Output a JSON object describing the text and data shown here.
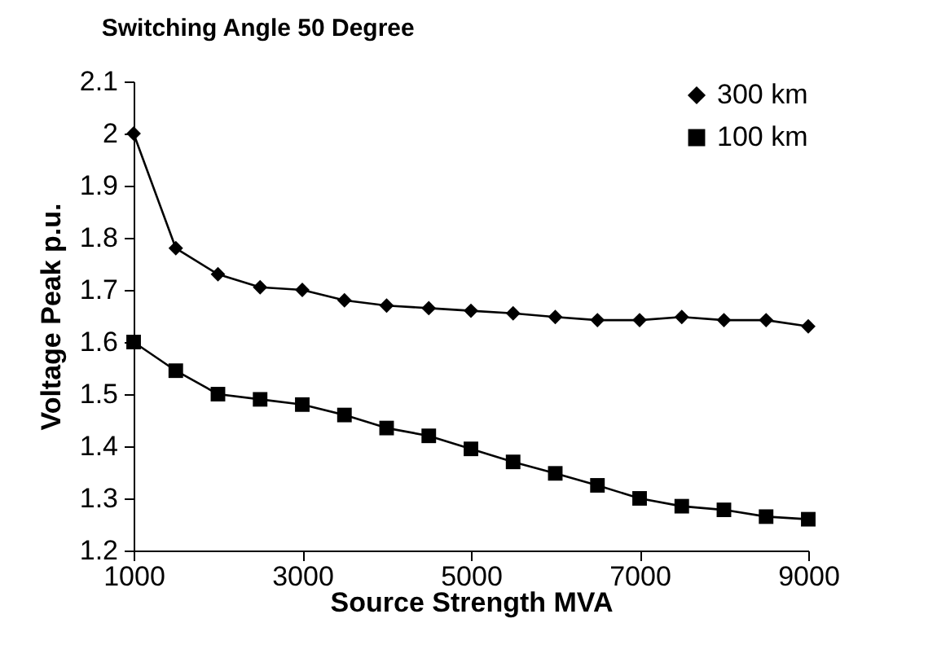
{
  "chart_data": {
    "type": "line",
    "title": "Switching Angle 50 Degree",
    "xlabel": "Source Strength MVA",
    "ylabel": "Voltage Peak p.u.",
    "x": [
      1000,
      1500,
      2000,
      2500,
      3000,
      3500,
      4000,
      4500,
      5000,
      5500,
      6000,
      6500,
      7000,
      7500,
      8000,
      8500,
      9000
    ],
    "series": [
      {
        "name": "300 km",
        "color": "#000000",
        "marker": "diamond",
        "values": [
          2.0,
          1.78,
          1.73,
          1.705,
          1.7,
          1.68,
          1.67,
          1.665,
          1.66,
          1.655,
          1.648,
          1.642,
          1.642,
          1.648,
          1.642,
          1.642,
          1.63
        ]
      },
      {
        "name": "100 km",
        "color": "#000000",
        "marker": "square",
        "values": [
          1.6,
          1.545,
          1.5,
          1.49,
          1.48,
          1.46,
          1.435,
          1.42,
          1.395,
          1.37,
          1.348,
          1.325,
          1.3,
          1.285,
          1.278,
          1.265,
          1.26
        ]
      }
    ],
    "xlim": [
      1000,
      9000
    ],
    "xticks": [
      1000,
      3000,
      5000,
      7000,
      9000
    ],
    "ylim": [
      1.2,
      2.1
    ],
    "yticks": [
      1.2,
      1.3,
      1.4,
      1.5,
      1.6,
      1.7,
      1.8,
      1.9,
      2,
      2.1
    ],
    "grid": false,
    "legend": "top right"
  }
}
